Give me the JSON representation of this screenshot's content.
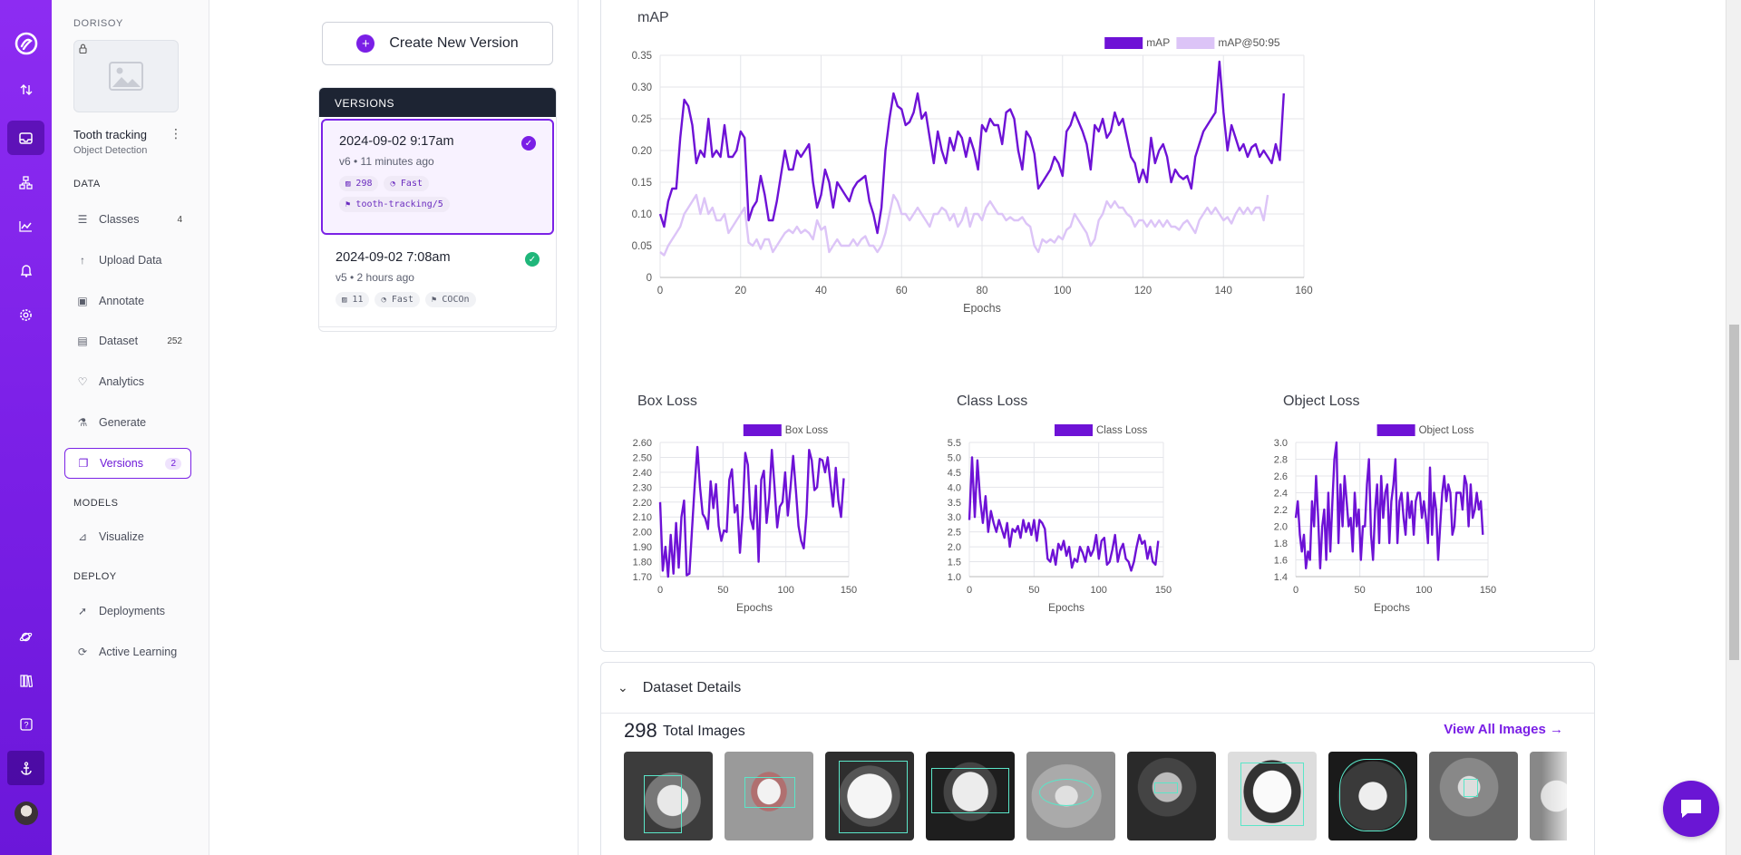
{
  "rail": {
    "items": [
      "logo-icon",
      "transfer-icon",
      "inbox-icon",
      "workflow-icon",
      "chart-icon",
      "bell-icon",
      "gear-icon",
      "planet-icon",
      "book-icon",
      "help-icon",
      "anchor-icon"
    ]
  },
  "sidebar": {
    "workspace": "DORISOY",
    "project_name": "Tooth tracking",
    "project_type": "Object Detection",
    "sections": {
      "data": "DATA",
      "models": "MODELS",
      "deploy": "DEPLOY"
    },
    "data_items": [
      {
        "label": "Classes",
        "count": "4",
        "icon": "list-icon"
      },
      {
        "label": "Upload Data",
        "count": "",
        "icon": "upload-icon"
      },
      {
        "label": "Annotate",
        "count": "",
        "icon": "annotate-icon"
      },
      {
        "label": "Dataset",
        "count": "252",
        "icon": "dataset-icon"
      },
      {
        "label": "Analytics",
        "count": "",
        "icon": "heart-icon"
      },
      {
        "label": "Generate",
        "count": "",
        "icon": "generate-icon"
      },
      {
        "label": "Versions",
        "count": "2",
        "icon": "versions-icon"
      }
    ],
    "model_items": [
      {
        "label": "Visualize",
        "icon": "visualize-icon"
      }
    ],
    "deploy_items": [
      {
        "label": "Deployments",
        "icon": "rocket-icon"
      },
      {
        "label": "Active Learning",
        "icon": "loop-icon"
      }
    ]
  },
  "versions": {
    "create_label": "Create New Version",
    "header": "VERSIONS",
    "items": [
      {
        "date": "2024-09-02 9:17am",
        "meta": "v6 • 11 minutes ago",
        "images": "298",
        "speed": "Fast",
        "tag": "tooth-tracking/5",
        "check_color": "#7a1fe6"
      },
      {
        "date": "2024-09-02 7:08am",
        "meta": "v5 • 2 hours ago",
        "images": "11",
        "speed": "Fast",
        "tag": "COCOn",
        "check_color": "#1fb67a"
      }
    ]
  },
  "charts": {
    "accent": "#6e12d6",
    "accent_light": "#dcc4f7"
  },
  "chart_data": [
    {
      "type": "line",
      "title": "mAP",
      "xlabel": "Epochs",
      "ylabel": "",
      "xlim": [
        0,
        160
      ],
      "ylim": [
        0,
        0.35
      ],
      "xticks": [
        "0",
        "20",
        "40",
        "60",
        "80",
        "100",
        "120",
        "140",
        "160"
      ],
      "yticks": [
        "0",
        "0.05",
        "0.10",
        "0.15",
        "0.20",
        "0.25",
        "0.30",
        "0.35"
      ],
      "legend": "top-right",
      "grid": true,
      "series": [
        {
          "name": "mAP",
          "color": "#6e12d6",
          "values": [
            0.1,
            0.08,
            0.12,
            0.14,
            0.14,
            0.22,
            0.28,
            0.27,
            0.24,
            0.18,
            0.2,
            0.19,
            0.25,
            0.19,
            0.2,
            0.19,
            0.24,
            0.19,
            0.19,
            0.2,
            0.23,
            0.22,
            0.09,
            0.11,
            0.12,
            0.16,
            0.13,
            0.09,
            0.09,
            0.12,
            0.16,
            0.2,
            0.17,
            0.17,
            0.2,
            0.19,
            0.2,
            0.21,
            0.15,
            0.11,
            0.13,
            0.17,
            0.15,
            0.11,
            0.15,
            0.14,
            0.13,
            0.12,
            0.14,
            0.15,
            0.155,
            0.16,
            0.12,
            0.1,
            0.07,
            0.11,
            0.2,
            0.25,
            0.29,
            0.27,
            0.265,
            0.24,
            0.245,
            0.26,
            0.29,
            0.25,
            0.26,
            0.22,
            0.18,
            0.23,
            0.2,
            0.18,
            0.22,
            0.2,
            0.23,
            0.22,
            0.19,
            0.22,
            0.2,
            0.17,
            0.24,
            0.23,
            0.25,
            0.24,
            0.24,
            0.21,
            0.26,
            0.265,
            0.25,
            0.2,
            0.17,
            0.23,
            0.22,
            0.195,
            0.14,
            0.15,
            0.16,
            0.17,
            0.19,
            0.18,
            0.16,
            0.23,
            0.24,
            0.26,
            0.245,
            0.23,
            0.21,
            0.17,
            0.24,
            0.23,
            0.25,
            0.22,
            0.23,
            0.26,
            0.24,
            0.25,
            0.22,
            0.19,
            0.18,
            0.15,
            0.17,
            0.15,
            0.22,
            0.18,
            0.2,
            0.21,
            0.19,
            0.15,
            0.17,
            0.16,
            0.155,
            0.16,
            0.14,
            0.19,
            0.21,
            0.23,
            0.24,
            0.25,
            0.26,
            0.34,
            0.26,
            0.2,
            0.24,
            0.22,
            0.2,
            0.21,
            0.19,
            0.205,
            0.21,
            0.19,
            0.2,
            0.19,
            0.18,
            0.21,
            0.185,
            0.29
          ]
        },
        {
          "name": "mAP@50:95",
          "color": "#dcc4f7",
          "values": [
            0.04,
            0.035,
            0.05,
            0.06,
            0.07,
            0.08,
            0.1,
            0.11,
            0.12,
            0.13,
            0.1,
            0.125,
            0.1,
            0.11,
            0.09,
            0.09,
            0.1,
            0.07,
            0.08,
            0.09,
            0.1,
            0.11,
            0.055,
            0.05,
            0.06,
            0.045,
            0.06,
            0.06,
            0.04,
            0.05,
            0.06,
            0.07,
            0.075,
            0.07,
            0.08,
            0.07,
            0.075,
            0.07,
            0.06,
            0.09,
            0.075,
            0.08,
            0.04,
            0.05,
            0.06,
            0.05,
            0.05,
            0.05,
            0.06,
            0.05,
            0.06,
            0.065,
            0.05,
            0.05,
            0.04,
            0.05,
            0.07,
            0.1,
            0.13,
            0.12,
            0.1,
            0.1,
            0.09,
            0.1,
            0.11,
            0.1,
            0.09,
            0.08,
            0.1,
            0.1,
            0.11,
            0.105,
            0.09,
            0.1,
            0.08,
            0.09,
            0.11,
            0.08,
            0.1,
            0.1,
            0.09,
            0.11,
            0.12,
            0.11,
            0.1,
            0.1,
            0.09,
            0.095,
            0.09,
            0.09,
            0.095,
            0.085,
            0.08,
            0.05,
            0.04,
            0.06,
            0.055,
            0.06,
            0.055,
            0.065,
            0.06,
            0.075,
            0.08,
            0.1,
            0.09,
            0.08,
            0.07,
            0.05,
            0.06,
            0.09,
            0.1,
            0.12,
            0.11,
            0.12,
            0.11,
            0.11,
            0.1,
            0.095,
            0.08,
            0.09,
            0.09,
            0.08,
            0.09,
            0.08,
            0.09,
            0.08,
            0.09,
            0.08,
            0.08,
            0.075,
            0.085,
            0.09,
            0.08,
            0.07,
            0.09,
            0.1,
            0.11,
            0.1,
            0.11,
            0.1,
            0.09,
            0.095,
            0.085,
            0.1,
            0.11,
            0.1,
            0.11,
            0.1,
            0.11,
            0.11,
            0.09,
            0.13
          ]
        }
      ]
    },
    {
      "type": "line",
      "title": "Box Loss",
      "xlabel": "Epochs",
      "xlim": [
        0,
        150
      ],
      "ylim": [
        1.7,
        2.6
      ],
      "xticks": [
        "0",
        "50",
        "100",
        "150"
      ],
      "yticks": [
        "1.70",
        "1.80",
        "1.90",
        "2.00",
        "2.10",
        "2.20",
        "2.30",
        "2.40",
        "2.50",
        "2.60"
      ],
      "legend": "top-right",
      "grid": true,
      "series": [
        {
          "name": "Box Loss",
          "color": "#6e12d6",
          "values": [
            2.2,
            1.74,
            1.9,
            1.7,
            1.98,
            1.72,
            2.06,
            1.76,
            2.1,
            2.21,
            1.71,
            1.72,
            2.02,
            2.31,
            2.57,
            2.3,
            2.12,
            2.09,
            2.02,
            2.34,
            2.16,
            2.32,
            2.04,
            1.94,
            2.01,
            2.0,
            2.35,
            2.42,
            2.13,
            2.18,
            1.86,
            2.12,
            2.53,
            2.45,
            2.09,
            2.02,
            2.31,
            1.8,
            2.35,
            2.41,
            2.06,
            2.23,
            2.55,
            2.3,
            2.03,
            2.17,
            2.2,
            2.4,
            2.11,
            2.3,
            2.51,
            2.29,
            2.04,
            1.94,
            1.89,
            2.12,
            2.55,
            2.48,
            2.28,
            2.3,
            2.49,
            2.48,
            2.4,
            2.5,
            2.33,
            2.17,
            2.43,
            2.21,
            2.1,
            2.36
          ]
        }
      ]
    },
    {
      "type": "line",
      "title": "Class Loss",
      "xlabel": "Epochs",
      "xlim": [
        0,
        150
      ],
      "ylim": [
        1.0,
        5.5
      ],
      "xticks": [
        "0",
        "50",
        "100",
        "150"
      ],
      "yticks": [
        "1.0",
        "1.5",
        "2.0",
        "2.5",
        "3.0",
        "3.5",
        "4.0",
        "4.5",
        "5.0",
        "5.5"
      ],
      "legend": "top-right",
      "grid": true,
      "series": [
        {
          "name": "Class Loss",
          "color": "#6e12d6",
          "values": [
            2.9,
            5.0,
            3.0,
            4.9,
            3.6,
            2.8,
            3.7,
            2.5,
            3.2,
            2.8,
            2.5,
            2.9,
            2.6,
            2.3,
            2.8,
            2.0,
            2.6,
            2.5,
            2.7,
            2.3,
            2.9,
            2.5,
            2.8,
            2.4,
            2.9,
            2.2,
            2.9,
            2.8,
            2.6,
            1.6,
            1.5,
            1.9,
            1.4,
            2.1,
            1.9,
            2.2,
            1.7,
            2.0,
            1.3,
            1.6,
            1.5,
            2.0,
            1.8,
            1.5,
            2.0,
            1.7,
            1.9,
            2.4,
            1.6,
            2.2,
            2.3,
            1.4,
            1.5,
            1.9,
            2.4,
            1.5,
            1.9,
            2.1,
            1.6,
            1.5,
            1.2,
            1.5,
            2.0,
            2.4,
            2.1,
            2.2,
            1.6,
            2.0,
            1.5,
            1.4,
            2.2
          ]
        }
      ]
    },
    {
      "type": "line",
      "title": "Object Loss",
      "xlabel": "Epochs",
      "xlim": [
        0,
        150
      ],
      "ylim": [
        1.4,
        3.0
      ],
      "xticks": [
        "0",
        "50",
        "100",
        "150"
      ],
      "yticks": [
        "1.4",
        "1.6",
        "1.8",
        "2.0",
        "2.2",
        "2.4",
        "2.6",
        "2.8",
        "3.0"
      ],
      "legend": "top-right",
      "grid": true,
      "series": [
        {
          "name": "Object Loss",
          "color": "#6e12d6",
          "values": [
            2.1,
            2.3,
            1.9,
            1.7,
            1.9,
            1.5,
            1.7,
            1.6,
            2.3,
            2.0,
            2.6,
            2.1,
            1.5,
            2.0,
            2.2,
            1.6,
            2.4,
            1.7,
            2.3,
            2.8,
            3.0,
            1.8,
            2.5,
            2.0,
            2.6,
            2.3,
            2.0,
            2.1,
            1.7,
            2.4,
            2.0,
            2.2,
            1.6,
            2.0,
            2.0,
            2.5,
            2.8,
            1.9,
            1.6,
            2.2,
            2.5,
            1.8,
            2.6,
            2.1,
            2.4,
            2.5,
            1.8,
            2.3,
            2.5,
            2.8,
            1.8,
            2.3,
            2.4,
            2.1,
            1.9,
            2.4,
            2.1,
            2.3,
            1.9,
            2.3,
            2.4,
            2.4,
            2.1,
            2.3,
            2.1,
            1.8,
            2.7,
            1.9,
            2.4,
            2.2,
            1.6,
            2.0,
            2.4,
            2.6,
            2.3,
            2.5,
            2.4,
            1.9,
            2.0,
            2.4,
            2.4,
            2.4,
            2.2,
            2.6,
            2.5,
            2.0,
            2.5,
            2.1,
            2.2,
            2.4,
            2.2,
            2.3,
            1.9
          ]
        }
      ]
    }
  ],
  "dataset": {
    "header": "Dataset Details",
    "total_count": "298",
    "total_label": "Total Images",
    "view_all": "View All Images →"
  },
  "scrollbar": {
    "position": 0.38
  }
}
